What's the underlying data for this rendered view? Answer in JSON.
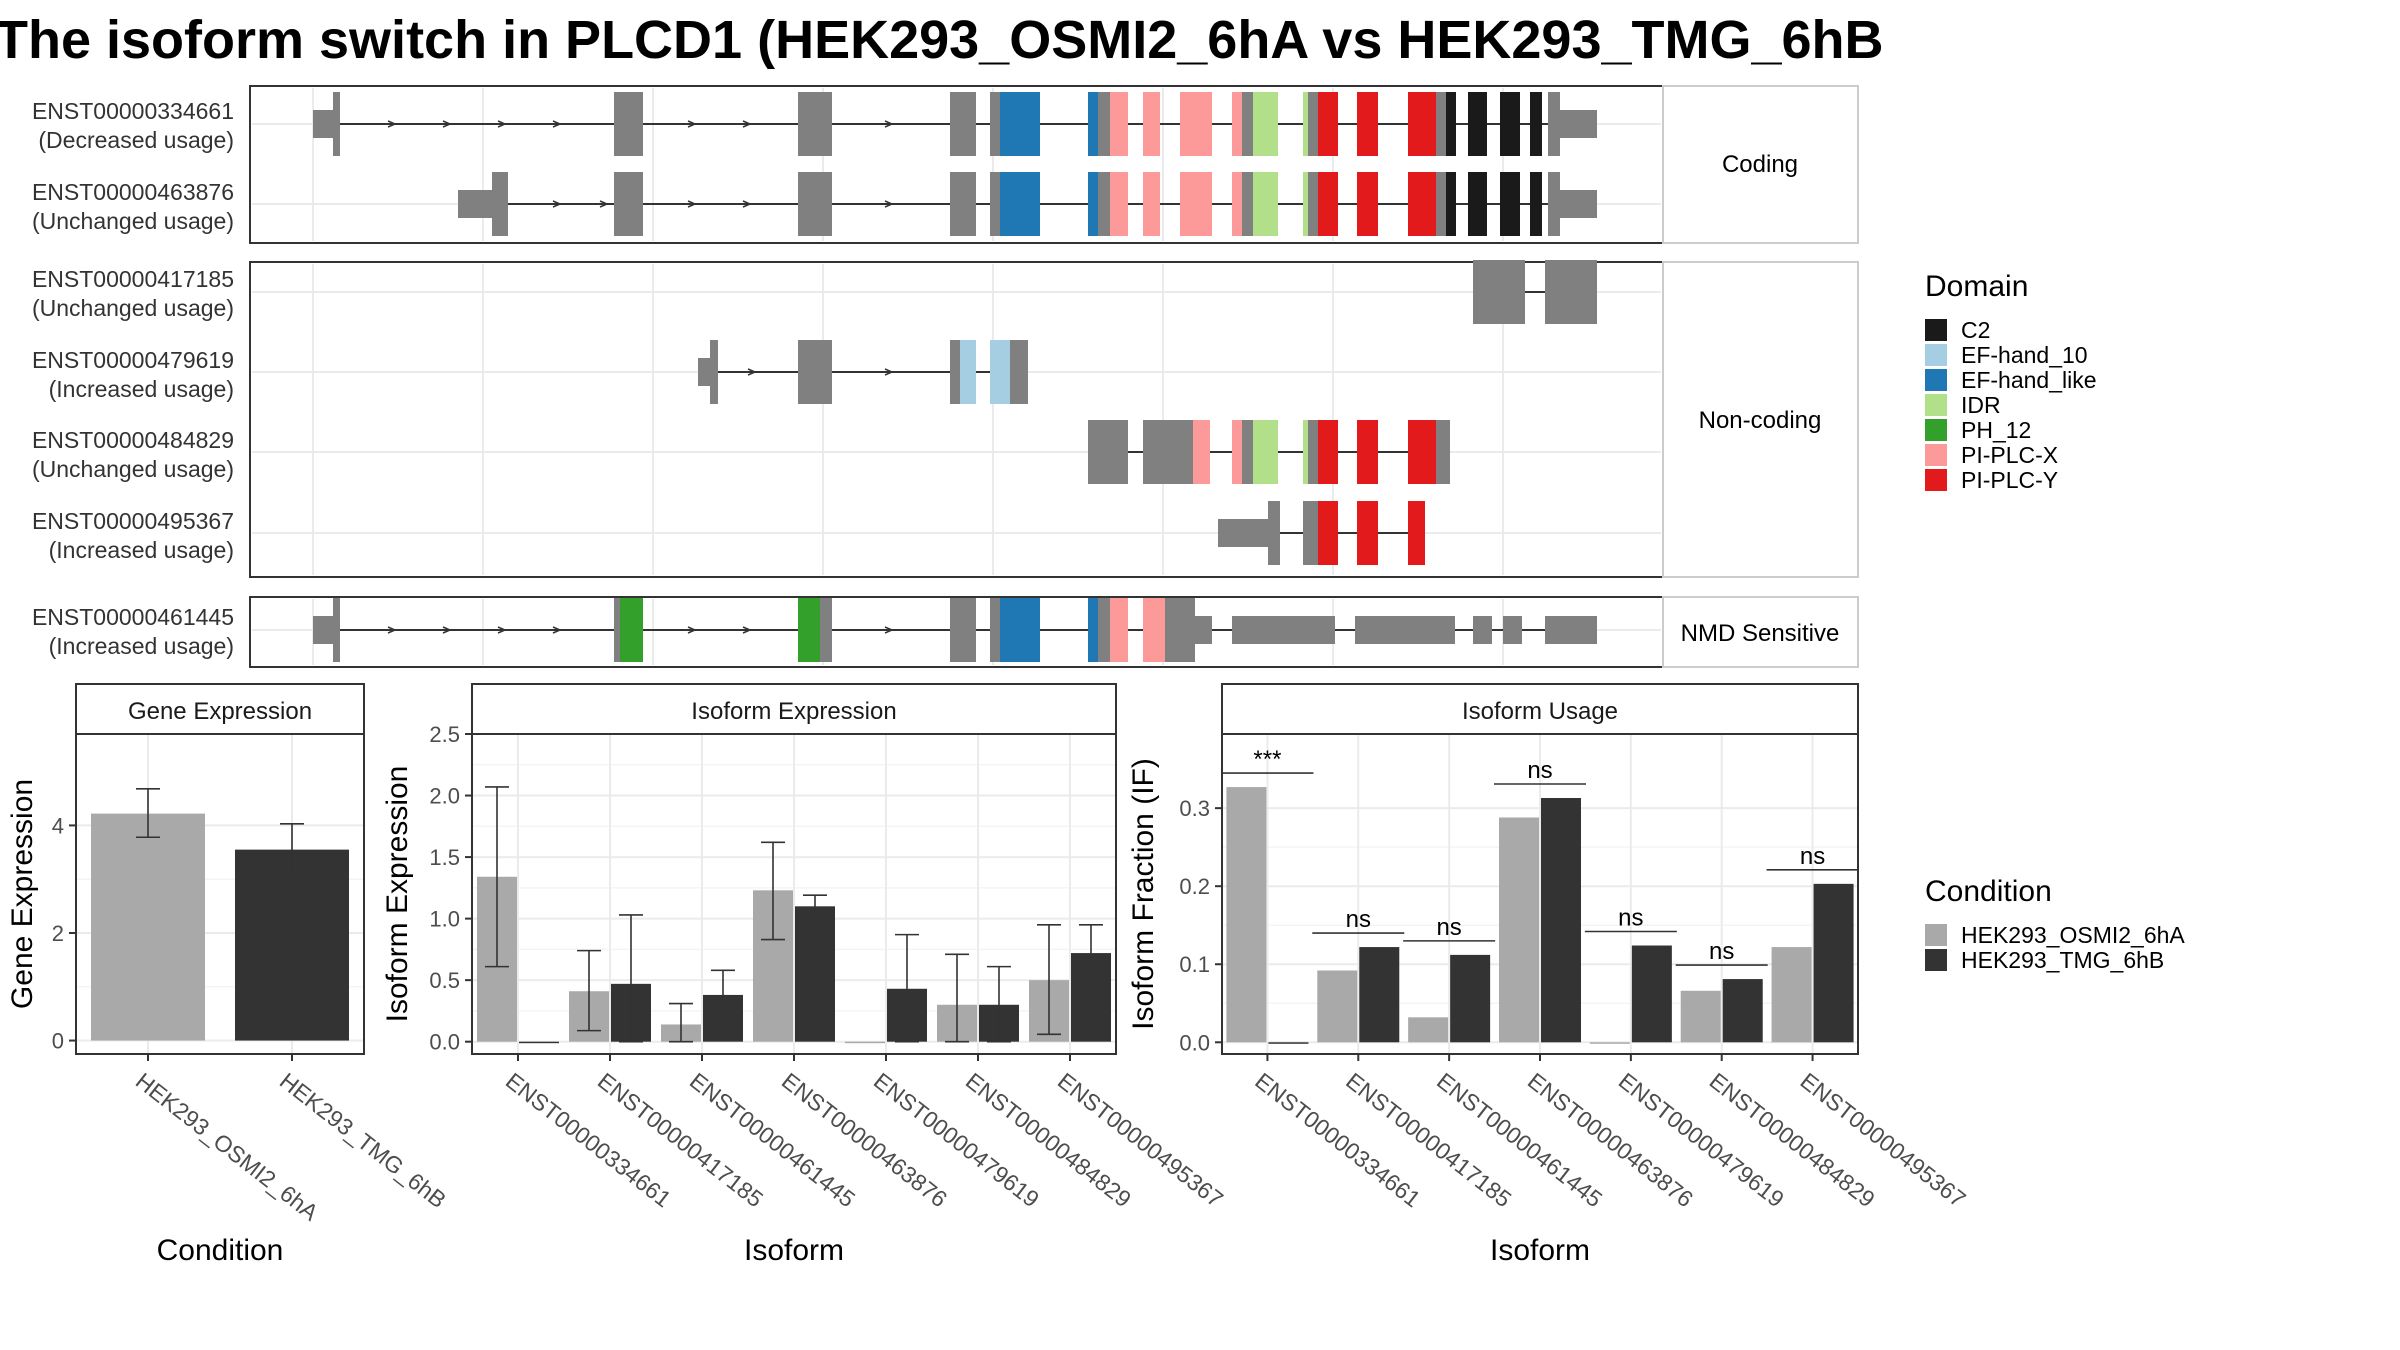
{
  "title": "The isoform switch in PLCD1 (HEK293_OSMI2_6hA vs HEK293_TMG_6hB",
  "structure_panels": [
    {
      "label": "Coding",
      "transcripts": [
        {
          "id": "ENST00000334661",
          "usage": "(Decreased usage)"
        },
        {
          "id": "ENST00000463876",
          "usage": "(Unchanged usage)"
        }
      ]
    },
    {
      "label": "Non-coding",
      "transcripts": [
        {
          "id": "ENST00000417185",
          "usage": "(Unchanged usage)"
        },
        {
          "id": "ENST00000479619",
          "usage": "(Increased usage)"
        },
        {
          "id": "ENST00000484829",
          "usage": "(Unchanged usage)"
        },
        {
          "id": "ENST00000495367",
          "usage": "(Increased usage)"
        }
      ]
    },
    {
      "label": "NMD Sensitive",
      "transcripts": [
        {
          "id": "ENST00000461445",
          "usage": "(Increased usage)"
        }
      ]
    }
  ],
  "legend_domain": {
    "title": "Domain",
    "items": [
      {
        "name": "C2",
        "color": "#1a1a1a"
      },
      {
        "name": "EF-hand_10",
        "color": "#a6cee3"
      },
      {
        "name": "EF-hand_like",
        "color": "#1f78b4"
      },
      {
        "name": "IDR",
        "color": "#b2df8a"
      },
      {
        "name": "PH_12",
        "color": "#33a02c"
      },
      {
        "name": "PI-PLC-X",
        "color": "#fb9a99"
      },
      {
        "name": "PI-PLC-Y",
        "color": "#e31a1c"
      }
    ]
  },
  "legend_condition": {
    "title": "Condition",
    "items": [
      {
        "name": "HEK293_OSMI2_6hA",
        "color": "#a9a9a9"
      },
      {
        "name": "HEK293_TMG_6hB",
        "color": "#333333"
      }
    ]
  },
  "chart_data": [
    {
      "type": "bar",
      "title": "Gene Expression",
      "xlabel": "Condition",
      "ylabel": "Gene Expression",
      "categories": [
        "HEK293_OSMI2_6hA",
        "HEK293_TMG_6hB"
      ],
      "values": [
        4.22,
        3.55
      ],
      "errors": [
        [
          3.78,
          4.68
        ],
        [
          3.07,
          4.03
        ]
      ],
      "colors": [
        "#a9a9a9",
        "#333333"
      ],
      "ylim": [
        -0.25,
        5.7
      ],
      "yticks": [
        0,
        2,
        4
      ]
    },
    {
      "type": "bar",
      "title": "Isoform Expression",
      "xlabel": "Isoform",
      "ylabel": "Isoform Expression",
      "categories": [
        "ENST00000334661",
        "ENST00000417185",
        "ENST00000461445",
        "ENST00000463876",
        "ENST00000479619",
        "ENST00000484829",
        "ENST00000495367"
      ],
      "series": [
        {
          "name": "HEK293_OSMI2_6hA",
          "values": [
            1.34,
            0.41,
            0.14,
            1.23,
            0.0,
            0.3,
            0.5
          ],
          "errors": [
            [
              0.61,
              2.07
            ],
            [
              0.09,
              0.74
            ],
            [
              0.0,
              0.31
            ],
            [
              0.83,
              1.62
            ],
            null,
            [
              0.0,
              0.71
            ],
            [
              0.06,
              0.95
            ]
          ]
        },
        {
          "name": "HEK293_TMG_6hB",
          "values": [
            0.0,
            0.47,
            0.38,
            1.1,
            0.43,
            0.3,
            0.72
          ],
          "errors": [
            null,
            [
              0.0,
              1.03
            ],
            [
              0.17,
              0.58
            ],
            [
              1.01,
              1.19
            ],
            [
              0.0,
              0.87
            ],
            [
              0.0,
              0.61
            ],
            [
              0.48,
              0.95
            ]
          ]
        }
      ],
      "ylim": [
        -0.1,
        2.5
      ],
      "yticks": [
        0.0,
        0.5,
        1.0,
        1.5,
        2.0,
        2.5
      ]
    },
    {
      "type": "bar",
      "title": "Isoform Usage",
      "xlabel": "Isoform",
      "ylabel": "Isoform Fraction (IF)",
      "categories": [
        "ENST00000334661",
        "ENST00000417185",
        "ENST00000461445",
        "ENST00000463876",
        "ENST00000479619",
        "ENST00000484829",
        "ENST00000495367"
      ],
      "series": [
        {
          "name": "HEK293_OSMI2_6hA",
          "values": [
            0.327,
            0.092,
            0.032,
            0.288,
            0.0,
            0.066,
            0.122
          ]
        },
        {
          "name": "HEK293_TMG_6hB",
          "values": [
            0.0,
            0.122,
            0.112,
            0.313,
            0.124,
            0.081,
            0.203
          ]
        }
      ],
      "annotations": [
        "***",
        "ns",
        "ns",
        "ns",
        "ns",
        "ns",
        "ns"
      ],
      "ylim": [
        -0.015,
        0.395
      ],
      "yticks": [
        0.0,
        0.1,
        0.2,
        0.3
      ]
    }
  ]
}
